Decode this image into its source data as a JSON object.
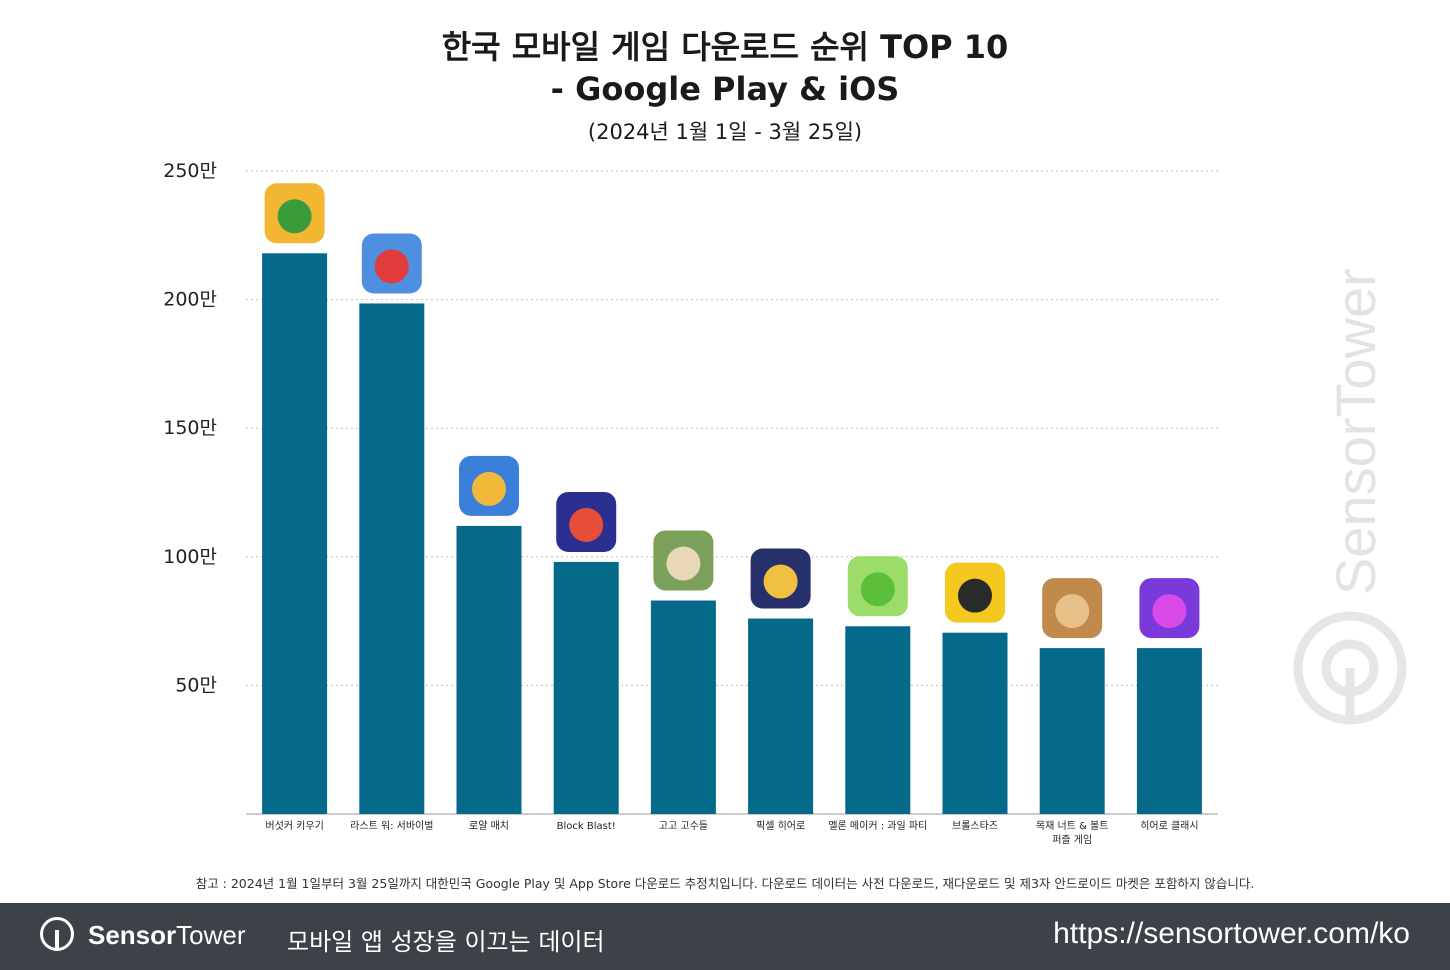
{
  "header": {
    "title_line1": "한국 모바일 게임 다운로드 순위 TOP 10",
    "title_line2": "- Google Play & iOS",
    "subtitle": "(2024년 1월 1일 - 3월 25일)"
  },
  "chart_data": {
    "type": "bar",
    "categories": [
      "버섯커 키우기",
      "라스트 워: 서바이벌",
      "로얄 매치",
      "Block Blast!",
      "고고 고수들",
      "픽셀 히어로",
      "멜론 메이커 : 과일 파티",
      "브롤스타즈",
      "목재 너트 & 볼트 퍼즐 게임",
      "히어로 클래시"
    ],
    "values": [
      2180000,
      1985000,
      1120000,
      980000,
      830000,
      760000,
      730000,
      705000,
      645000,
      645000
    ],
    "ylim": [
      0,
      2500000
    ],
    "yticks": [
      500000,
      1000000,
      1500000,
      2000000,
      2500000
    ],
    "ytick_labels": [
      "50만",
      "100만",
      "150만",
      "200만",
      "250만"
    ],
    "bar_color": "#05698a",
    "grid": "dotted horizontal",
    "legend": "none"
  },
  "app_icons": [
    "mushroom-app-icon",
    "last-war-app-icon",
    "royal-match-app-icon",
    "block-blast-app-icon",
    "gogo-app-icon",
    "pixel-hero-app-icon",
    "melon-maker-app-icon",
    "brawl-stars-app-icon",
    "wood-nuts-app-icon",
    "hero-clash-app-icon"
  ],
  "note": "참고 : 2024년 1월 1일부터 3월 25일까지 대한민국 Google Play 및 App Store 다운로드 추정치입니다. 다운로드 데이터는 사전 다운로드, 재다운로드 및 제3자 안드로이드 마켓은 포함하지 않습니다.",
  "footer": {
    "brand_bold": "Sensor",
    "brand_regular": "Tower",
    "tagline": "모바일 앱 성장을 이끄는 데이터",
    "url": "https://sensortower.com/ko"
  },
  "watermark_text": "SensorTower"
}
